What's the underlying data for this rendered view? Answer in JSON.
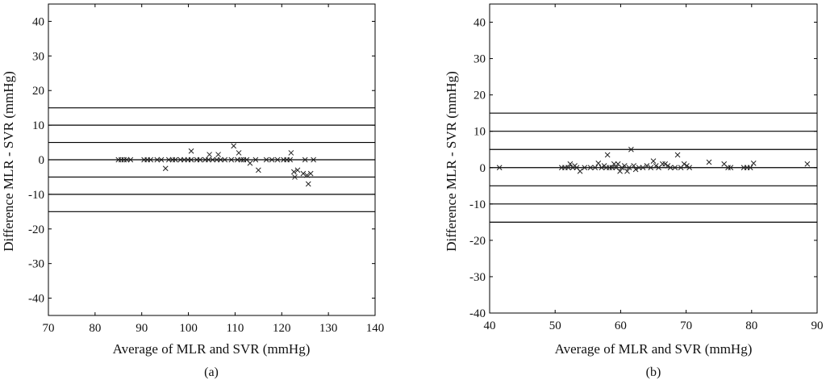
{
  "chart_data": [
    {
      "type": "scatter",
      "panel": "a",
      "caption": "(a)",
      "xlabel": "Average of MLR and SVR (mmHg)",
      "ylabel": "Difference MLR - SVR (mmHg)",
      "xlim": [
        70,
        140
      ],
      "ylim": [
        -45,
        45
      ],
      "xticks": [
        70,
        80,
        90,
        100,
        110,
        120,
        130,
        140
      ],
      "yticks": [
        40,
        30,
        20,
        10,
        0,
        -10,
        -20,
        -30,
        -40
      ],
      "reference_lines": [
        15,
        10,
        5,
        0,
        -5,
        -10,
        -15
      ],
      "marker": "x",
      "points": [
        [
          85,
          0
        ],
        [
          85.6,
          0
        ],
        [
          86.2,
          0
        ],
        [
          86.8,
          0
        ],
        [
          87.6,
          0
        ],
        [
          90.5,
          0
        ],
        [
          91.2,
          0
        ],
        [
          91.9,
          0
        ],
        [
          93.3,
          0
        ],
        [
          94.2,
          0
        ],
        [
          95.1,
          -2.5
        ],
        [
          95.8,
          0
        ],
        [
          96.6,
          0
        ],
        [
          97.2,
          0
        ],
        [
          98.3,
          0
        ],
        [
          99.1,
          0
        ],
        [
          99.9,
          0
        ],
        [
          100.6,
          0
        ],
        [
          100.6,
          2.5
        ],
        [
          101.8,
          0
        ],
        [
          102.5,
          0
        ],
        [
          103.6,
          0
        ],
        [
          104.3,
          0
        ],
        [
          104.5,
          1.5
        ],
        [
          105.2,
          0
        ],
        [
          106.1,
          0
        ],
        [
          106.4,
          1.5
        ],
        [
          106.9,
          0
        ],
        [
          107.8,
          0
        ],
        [
          109.2,
          0
        ],
        [
          109.7,
          4
        ],
        [
          110.5,
          0
        ],
        [
          110.8,
          2
        ],
        [
          111.3,
          0
        ],
        [
          111.8,
          0
        ],
        [
          112.5,
          0
        ],
        [
          113.2,
          -1
        ],
        [
          114.4,
          0
        ],
        [
          115,
          -3
        ],
        [
          116.7,
          0
        ],
        [
          117.9,
          0
        ],
        [
          119.1,
          0
        ],
        [
          120.4,
          0
        ],
        [
          121.1,
          0
        ],
        [
          121.8,
          0
        ],
        [
          122,
          2
        ],
        [
          122.6,
          -3.5
        ],
        [
          122.8,
          -5
        ],
        [
          123.4,
          -3
        ],
        [
          124.6,
          -4
        ],
        [
          125,
          0
        ],
        [
          125.4,
          -4.5
        ],
        [
          125.7,
          -7
        ],
        [
          126.2,
          -4
        ],
        [
          126.8,
          0
        ]
      ]
    },
    {
      "type": "scatter",
      "panel": "b",
      "caption": "(b)",
      "xlabel": "Average of MLR and SVR (mmHg)",
      "ylabel": "Difference MLR - SVR (mmHg)",
      "xlim": [
        40,
        90
      ],
      "ylim": [
        -40,
        45
      ],
      "xticks": [
        40,
        50,
        60,
        70,
        80,
        90
      ],
      "yticks": [
        40,
        30,
        20,
        10,
        0,
        -10,
        -20,
        -30,
        -40
      ],
      "reference_lines": [
        15,
        10,
        5,
        0,
        -5,
        -10,
        -15
      ],
      "marker": "x",
      "points": [
        [
          41.5,
          0
        ],
        [
          51,
          0
        ],
        [
          51.5,
          0
        ],
        [
          52,
          0
        ],
        [
          52.3,
          1
        ],
        [
          52.7,
          0
        ],
        [
          53,
          0.5
        ],
        [
          53.3,
          0
        ],
        [
          53.8,
          -1
        ],
        [
          54.5,
          0
        ],
        [
          55.4,
          0
        ],
        [
          56.1,
          0
        ],
        [
          56.6,
          1.2
        ],
        [
          57.1,
          0
        ],
        [
          57.5,
          0.5
        ],
        [
          57.8,
          0
        ],
        [
          58,
          3.5
        ],
        [
          58.3,
          0
        ],
        [
          58.7,
          0
        ],
        [
          59,
          1
        ],
        [
          59.3,
          0
        ],
        [
          59.6,
          1
        ],
        [
          59.9,
          -1
        ],
        [
          60.2,
          0
        ],
        [
          60.6,
          0.5
        ],
        [
          61,
          -1
        ],
        [
          61.3,
          0
        ],
        [
          61.6,
          5
        ],
        [
          62,
          0.5
        ],
        [
          62.3,
          -0.5
        ],
        [
          62.8,
          0
        ],
        [
          63.4,
          0
        ],
        [
          64,
          0.5
        ],
        [
          64.6,
          0
        ],
        [
          65,
          1.8
        ],
        [
          65.4,
          0.5
        ],
        [
          65.8,
          0
        ],
        [
          66.4,
          1
        ],
        [
          66.8,
          1
        ],
        [
          67.2,
          0.5
        ],
        [
          67.6,
          0
        ],
        [
          68.3,
          0
        ],
        [
          68.7,
          3.5
        ],
        [
          69.2,
          0
        ],
        [
          69.7,
          1
        ],
        [
          70.1,
          0.5
        ],
        [
          70.5,
          0
        ],
        [
          73.5,
          1.5
        ],
        [
          75.8,
          1
        ],
        [
          76.4,
          0
        ],
        [
          76.8,
          0
        ],
        [
          78.8,
          0
        ],
        [
          79.3,
          0
        ],
        [
          79.8,
          0
        ],
        [
          80.3,
          1.2
        ],
        [
          88.5,
          1
        ]
      ]
    }
  ]
}
